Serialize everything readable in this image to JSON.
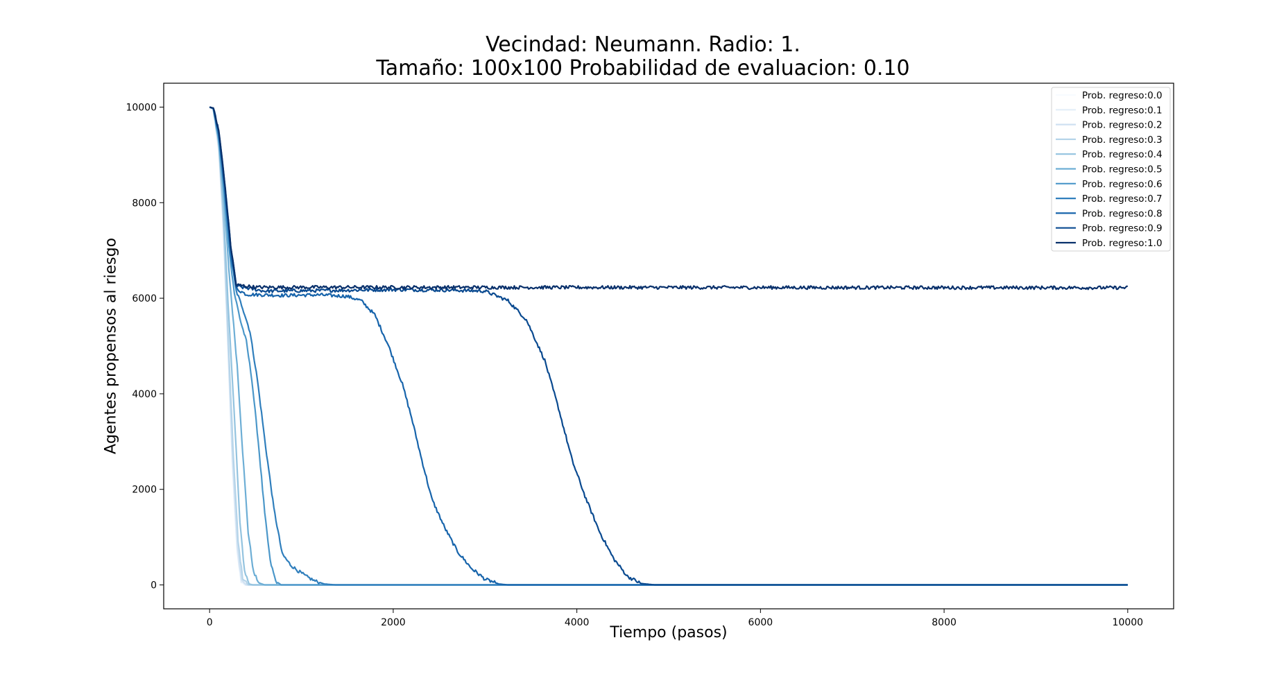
{
  "chart_data": {
    "type": "line",
    "title": [
      "Vecindad: Neumann. Radio: 1.",
      "Tamaño: 100x100 Probabilidad de evaluacion: 0.10"
    ],
    "xlabel": "Tiempo (pasos)",
    "ylabel": "Agentes propensos al riesgo",
    "xlim": [
      -500,
      10500
    ],
    "ylim": [
      -500,
      10500
    ],
    "xticks": [
      0,
      2000,
      4000,
      6000,
      8000,
      10000
    ],
    "yticks": [
      0,
      2000,
      4000,
      6000,
      8000,
      10000
    ],
    "grid": false,
    "legend_position": "top-right",
    "series": [
      {
        "name": "Prob. regreso:0.0",
        "color": "#f7fbff",
        "points": [
          [
            0,
            10000
          ],
          [
            40,
            9950
          ],
          [
            100,
            9100
          ],
          [
            150,
            7500
          ],
          [
            200,
            5000
          ],
          [
            250,
            2500
          ],
          [
            300,
            700
          ],
          [
            340,
            80
          ],
          [
            380,
            0
          ],
          [
            10000,
            0
          ]
        ]
      },
      {
        "name": "Prob. regreso:0.1",
        "color": "#e3eef9",
        "points": [
          [
            0,
            10000
          ],
          [
            40,
            9950
          ],
          [
            100,
            9100
          ],
          [
            150,
            7450
          ],
          [
            200,
            4950
          ],
          [
            250,
            2450
          ],
          [
            300,
            700
          ],
          [
            345,
            80
          ],
          [
            390,
            0
          ],
          [
            10000,
            0
          ]
        ]
      },
      {
        "name": "Prob. regreso:0.2",
        "color": "#cfe1f2",
        "points": [
          [
            0,
            10000
          ],
          [
            40,
            9950
          ],
          [
            100,
            9150
          ],
          [
            150,
            7550
          ],
          [
            200,
            5100
          ],
          [
            250,
            2650
          ],
          [
            305,
            780
          ],
          [
            350,
            100
          ],
          [
            400,
            0
          ],
          [
            10000,
            0
          ]
        ]
      },
      {
        "name": "Prob. regreso:0.3",
        "color": "#b5d4e9",
        "points": [
          [
            0,
            10000
          ],
          [
            40,
            9960
          ],
          [
            100,
            9200
          ],
          [
            150,
            7700
          ],
          [
            200,
            5300
          ],
          [
            255,
            2850
          ],
          [
            310,
            900
          ],
          [
            360,
            150
          ],
          [
            420,
            0
          ],
          [
            10000,
            0
          ]
        ]
      },
      {
        "name": "Prob. regreso:0.4",
        "color": "#93c3df",
        "points": [
          [
            0,
            10000
          ],
          [
            40,
            9960
          ],
          [
            100,
            9250
          ],
          [
            150,
            7900
          ],
          [
            200,
            5900
          ],
          [
            240,
            4600
          ],
          [
            290,
            2800
          ],
          [
            330,
            1300
          ],
          [
            380,
            300
          ],
          [
            430,
            20
          ],
          [
            470,
            0
          ],
          [
            10000,
            0
          ]
        ]
      },
      {
        "name": "Prob. regreso:0.5",
        "color": "#6daed5",
        "points": [
          [
            0,
            10000
          ],
          [
            40,
            9970
          ],
          [
            100,
            9300
          ],
          [
            160,
            8000
          ],
          [
            210,
            6600
          ],
          [
            250,
            5700
          ],
          [
            300,
            4600
          ],
          [
            360,
            2800
          ],
          [
            420,
            1100
          ],
          [
            480,
            250
          ],
          [
            540,
            40
          ],
          [
            600,
            0
          ],
          [
            10000,
            0
          ]
        ]
      },
      {
        "name": "Prob. regreso:0.6",
        "color": "#4b97c9",
        "points": [
          [
            0,
            10000
          ],
          [
            40,
            9970
          ],
          [
            100,
            9350
          ],
          [
            160,
            8200
          ],
          [
            220,
            6900
          ],
          [
            270,
            6100
          ],
          [
            340,
            5500
          ],
          [
            400,
            5100
          ],
          [
            460,
            4300
          ],
          [
            530,
            3000
          ],
          [
            600,
            1500
          ],
          [
            660,
            500
          ],
          [
            720,
            80
          ],
          [
            780,
            0
          ],
          [
            10000,
            0
          ]
        ]
      },
      {
        "name": "Prob. regreso:0.7",
        "color": "#2f7ebc",
        "points": [
          [
            0,
            10000
          ],
          [
            40,
            9970
          ],
          [
            100,
            9400
          ],
          [
            160,
            8300
          ],
          [
            230,
            6900
          ],
          [
            290,
            6150
          ],
          [
            360,
            5800
          ],
          [
            440,
            5300
          ],
          [
            520,
            4300
          ],
          [
            610,
            2900
          ],
          [
            700,
            1600
          ],
          [
            790,
            650
          ],
          [
            880,
            420
          ],
          [
            960,
            300
          ],
          [
            1050,
            180
          ],
          [
            1150,
            80
          ],
          [
            1250,
            20
          ],
          [
            1370,
            0
          ],
          [
            10000,
            0
          ]
        ]
      },
      {
        "name": "Prob. regreso:0.8",
        "color": "#1764ab",
        "points": [
          [
            0,
            10000
          ],
          [
            40,
            9980
          ],
          [
            100,
            9450
          ],
          [
            160,
            8400
          ],
          [
            230,
            7000
          ],
          [
            290,
            6200
          ],
          [
            400,
            6080
          ],
          [
            800,
            6060
          ],
          [
            1200,
            6070
          ],
          [
            1500,
            6040
          ],
          [
            1650,
            5950
          ],
          [
            1800,
            5650
          ],
          [
            1950,
            5000
          ],
          [
            2100,
            4200
          ],
          [
            2200,
            3500
          ],
          [
            2300,
            2700
          ],
          [
            2420,
            1800
          ],
          [
            2560,
            1200
          ],
          [
            2700,
            700
          ],
          [
            2850,
            350
          ],
          [
            3000,
            120
          ],
          [
            3150,
            20
          ],
          [
            3250,
            0
          ],
          [
            10000,
            0
          ]
        ]
      },
      {
        "name": "Prob. regreso:0.9",
        "color": "#0a4a90",
        "points": [
          [
            0,
            10000
          ],
          [
            40,
            9980
          ],
          [
            100,
            9500
          ],
          [
            160,
            8500
          ],
          [
            230,
            7100
          ],
          [
            290,
            6250
          ],
          [
            600,
            6150
          ],
          [
            1200,
            6160
          ],
          [
            2000,
            6180
          ],
          [
            2600,
            6170
          ],
          [
            3000,
            6150
          ],
          [
            3250,
            5950
          ],
          [
            3450,
            5550
          ],
          [
            3650,
            4700
          ],
          [
            3800,
            3700
          ],
          [
            3950,
            2600
          ],
          [
            4100,
            1800
          ],
          [
            4250,
            1100
          ],
          [
            4400,
            550
          ],
          [
            4550,
            180
          ],
          [
            4700,
            30
          ],
          [
            4850,
            0
          ],
          [
            10000,
            0
          ]
        ]
      },
      {
        "name": "Prob. regreso:1.0",
        "color": "#08306b",
        "points": [
          [
            0,
            10000
          ],
          [
            40,
            9980
          ],
          [
            100,
            9500
          ],
          [
            160,
            8500
          ],
          [
            230,
            7100
          ],
          [
            290,
            6280
          ],
          [
            500,
            6230
          ],
          [
            10000,
            6220
          ]
        ]
      }
    ]
  }
}
